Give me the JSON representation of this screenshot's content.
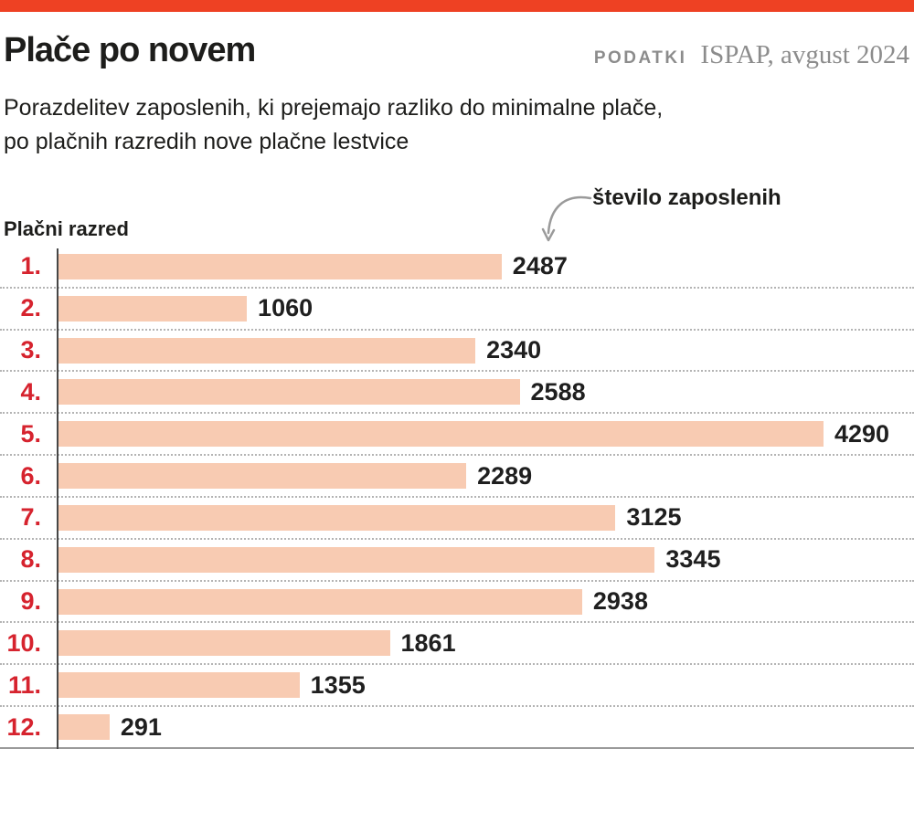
{
  "header": {
    "title": "Plače po novem",
    "source_label": "PODATKI",
    "source_value": "ISPAP, avgust 2024",
    "subtitle_line1": "Porazdelitev zaposlenih, ki prejemajo razliko do minimalne plače,",
    "subtitle_line2": "po plačnih razredih nove plačne lestvice",
    "top_bar_color": "#ee4123"
  },
  "chart_data": {
    "type": "bar",
    "orientation": "horizontal",
    "title": "Plače po novem",
    "subtitle": "Porazdelitev zaposlenih, ki prejemajo razliko do minimalne plače, po plačnih razredih nove plačne lestvice",
    "source": "PODATKI ISPAP, avgust 2024",
    "ylabel": "Plačni razred",
    "value_annotation": "število zaposlenih",
    "categories": [
      "1.",
      "2.",
      "3.",
      "4.",
      "5.",
      "6.",
      "7.",
      "8.",
      "9.",
      "10.",
      "11.",
      "12."
    ],
    "values": [
      2487,
      1060,
      2340,
      2588,
      4290,
      2289,
      3125,
      3345,
      2938,
      1861,
      1355,
      291
    ],
    "xlim": [
      0,
      4290
    ],
    "grid": "dotted-row-separators",
    "legend": "none",
    "value_labels": true,
    "bar_color": "#f8cbb2",
    "category_label_color": "#d6232e",
    "value_label_color": "#1f1f1f",
    "arrow_color": "#9a9a9a"
  }
}
